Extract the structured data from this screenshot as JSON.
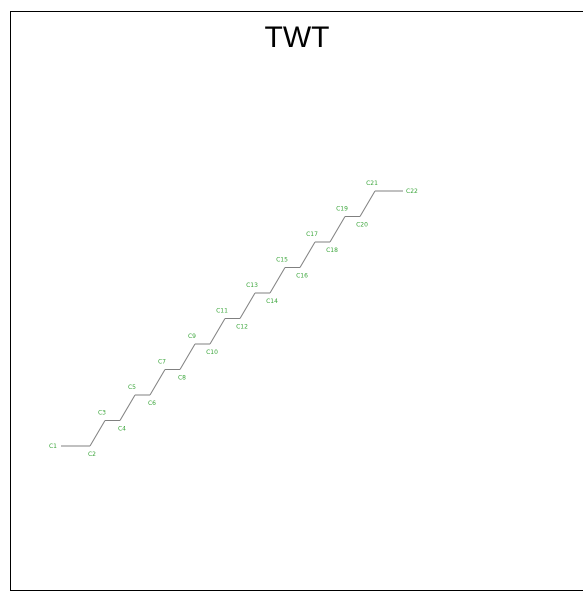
{
  "title": "TWT",
  "colors": {
    "bond": "#808080",
    "label": "#3aa53a",
    "title": "#000000",
    "frame": "#000000"
  },
  "atoms": [
    {
      "label": "C1",
      "label_side": "left"
    },
    {
      "label": "C2",
      "label_side": "below"
    },
    {
      "label": "C3",
      "label_side": "above"
    },
    {
      "label": "C4",
      "label_side": "below"
    },
    {
      "label": "C5",
      "label_side": "above"
    },
    {
      "label": "C6",
      "label_side": "below"
    },
    {
      "label": "C7",
      "label_side": "above"
    },
    {
      "label": "C8",
      "label_side": "below"
    },
    {
      "label": "C9",
      "label_side": "above"
    },
    {
      "label": "C10",
      "label_side": "below"
    },
    {
      "label": "C11",
      "label_side": "above"
    },
    {
      "label": "C12",
      "label_side": "below"
    },
    {
      "label": "C13",
      "label_side": "above"
    },
    {
      "label": "C14",
      "label_side": "below"
    },
    {
      "label": "C15",
      "label_side": "above"
    },
    {
      "label": "C16",
      "label_side": "below"
    },
    {
      "label": "C17",
      "label_side": "above"
    },
    {
      "label": "C18",
      "label_side": "below"
    },
    {
      "label": "C19",
      "label_side": "above"
    },
    {
      "label": "C20",
      "label_side": "below"
    },
    {
      "label": "C21",
      "label_side": "above"
    },
    {
      "label": "C22",
      "label_side": "right"
    }
  ],
  "bonds": [
    [
      "C1",
      "C2"
    ],
    [
      "C2",
      "C3"
    ],
    [
      "C3",
      "C4"
    ],
    [
      "C4",
      "C5"
    ],
    [
      "C5",
      "C6"
    ],
    [
      "C6",
      "C7"
    ],
    [
      "C7",
      "C8"
    ],
    [
      "C8",
      "C9"
    ],
    [
      "C9",
      "C10"
    ],
    [
      "C10",
      "C11"
    ],
    [
      "C11",
      "C12"
    ],
    [
      "C12",
      "C13"
    ],
    [
      "C13",
      "C14"
    ],
    [
      "C14",
      "C15"
    ],
    [
      "C15",
      "C16"
    ],
    [
      "C16",
      "C17"
    ],
    [
      "C17",
      "C18"
    ],
    [
      "C18",
      "C19"
    ],
    [
      "C19",
      "C20"
    ],
    [
      "C20",
      "C21"
    ],
    [
      "C21",
      "C22"
    ]
  ]
}
